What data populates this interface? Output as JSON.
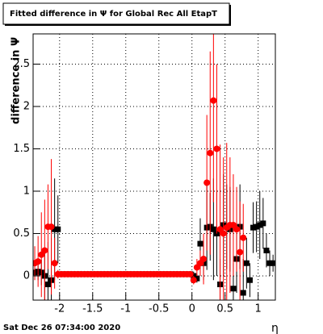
{
  "chart_data": {
    "type": "scatter",
    "title": "Fitted difference in  Ψ  for Global Rec All EtapT",
    "y_label": "difference in  Ψ",
    "x_label": "η",
    "footer": "Sat Dec 26 07:34:00 2020",
    "xlim": [
      -2.4,
      1.26
    ],
    "ylim": [
      -0.286,
      2.857
    ],
    "xticks": [
      -2,
      -1.5,
      -1,
      -0.5,
      0,
      0.5,
      1
    ],
    "yticks": [
      0,
      0.5,
      1,
      1.5,
      2,
      2.5
    ],
    "grid": true,
    "x": [
      -2.375,
      -2.325,
      -2.275,
      -2.225,
      -2.175,
      -2.125,
      -2.075,
      -2.025,
      -1.975,
      -1.925,
      -1.875,
      -1.825,
      -1.775,
      -1.725,
      -1.675,
      -1.625,
      -1.575,
      -1.525,
      -1.475,
      -1.425,
      -1.375,
      -1.325,
      -1.275,
      -1.225,
      -1.175,
      -1.125,
      -1.075,
      -1.025,
      -0.975,
      -0.925,
      -0.875,
      -0.825,
      -0.775,
      -0.725,
      -0.675,
      -0.625,
      -0.575,
      -0.525,
      -0.475,
      -0.425,
      -0.375,
      -0.325,
      -0.275,
      -0.225,
      -0.175,
      -0.125,
      -0.075,
      -0.025,
      0.025,
      0.075,
      0.125,
      0.175,
      0.225,
      0.275,
      0.325,
      0.375,
      0.425,
      0.475,
      0.525,
      0.575,
      0.625,
      0.675,
      0.725,
      0.775,
      0.825,
      0.875,
      0.925,
      0.975,
      1.025,
      1.075,
      1.125,
      1.175,
      1.225
    ],
    "series": [
      {
        "color": "#000000",
        "marker": "square",
        "values": [
          0.04,
          0.05,
          0.04,
          0.0,
          -0.1,
          -0.05,
          0.55,
          0.55,
          0.02,
          0.02,
          0.02,
          0.02,
          0.02,
          0.02,
          0.02,
          0.02,
          0.02,
          0.02,
          0.02,
          0.02,
          0.02,
          0.02,
          0.02,
          0.02,
          0.02,
          0.02,
          0.02,
          0.02,
          0.02,
          0.02,
          0.02,
          0.02,
          0.02,
          0.02,
          0.02,
          0.02,
          0.02,
          0.02,
          0.02,
          0.02,
          0.02,
          0.02,
          0.02,
          0.02,
          0.02,
          0.02,
          0.02,
          0.02,
          0.0,
          -0.03,
          0.38,
          0.15,
          0.57,
          0.58,
          0.55,
          0.5,
          -0.1,
          0.6,
          0.58,
          0.55,
          -0.15,
          0.2,
          0.58,
          -0.2,
          0.15,
          -0.05,
          0.57,
          0.58,
          0.6,
          0.62,
          0.3,
          0.15,
          0.15
        ],
        "errors": [
          0.05,
          0.1,
          0.15,
          0.3,
          0.5,
          0.5,
          0.6,
          0.4,
          0,
          0,
          0,
          0,
          0,
          0,
          0,
          0,
          0,
          0,
          0,
          0,
          0,
          0,
          0,
          0,
          0,
          0,
          0,
          0,
          0,
          0,
          0,
          0,
          0,
          0,
          0,
          0,
          0,
          0,
          0,
          0,
          0,
          0,
          0,
          0,
          0,
          0,
          0,
          0,
          0.05,
          0.05,
          0.3,
          0.2,
          0.5,
          0.4,
          0.6,
          0.5,
          0.3,
          0.6,
          0.5,
          0.5,
          0.3,
          0.4,
          0.5,
          0.4,
          0.3,
          0.2,
          0.3,
          0.3,
          0.4,
          0.3,
          0.2,
          0.15,
          0.1
        ]
      },
      {
        "color": "#ff0000",
        "marker": "circle",
        "values": [
          0.15,
          0.17,
          0.25,
          0.3,
          0.58,
          0.58,
          0.15,
          0.02,
          0.02,
          0.02,
          0.02,
          0.02,
          0.02,
          0.02,
          0.02,
          0.02,
          0.02,
          0.02,
          0.02,
          0.02,
          0.02,
          0.02,
          0.02,
          0.02,
          0.02,
          0.02,
          0.02,
          0.02,
          0.02,
          0.02,
          0.02,
          0.02,
          0.02,
          0.02,
          0.02,
          0.02,
          0.02,
          0.02,
          0.02,
          0.02,
          0.02,
          0.02,
          0.02,
          0.02,
          0.02,
          0.02,
          0.02,
          0.02,
          -0.05,
          0.1,
          0.15,
          0.2,
          1.1,
          1.45,
          2.07,
          1.5,
          0.55,
          0.5,
          0.57,
          0.6,
          0.6,
          0.55,
          0.28,
          0.45,
          null,
          null,
          null,
          null,
          null,
          null,
          null,
          null,
          null
        ],
        "errors": [
          0.2,
          0.3,
          0.5,
          0.6,
          0.5,
          0.8,
          0.3,
          0.05,
          0,
          0,
          0,
          0,
          0,
          0,
          0,
          0,
          0,
          0,
          0,
          0,
          0,
          0,
          0,
          0,
          0,
          0,
          0,
          0,
          0,
          0,
          0,
          0,
          0,
          0,
          0,
          0,
          0,
          0,
          0,
          0,
          0,
          0,
          0,
          0,
          0,
          0,
          0,
          0,
          0.05,
          0.1,
          0.15,
          0.3,
          0.8,
          1.2,
          1.2,
          1.0,
          1.0,
          0.9,
          1.0,
          0.8,
          0.6,
          0.5,
          0.6,
          0.4,
          null,
          null,
          null,
          null,
          null,
          null,
          null,
          null,
          null
        ]
      }
    ]
  }
}
